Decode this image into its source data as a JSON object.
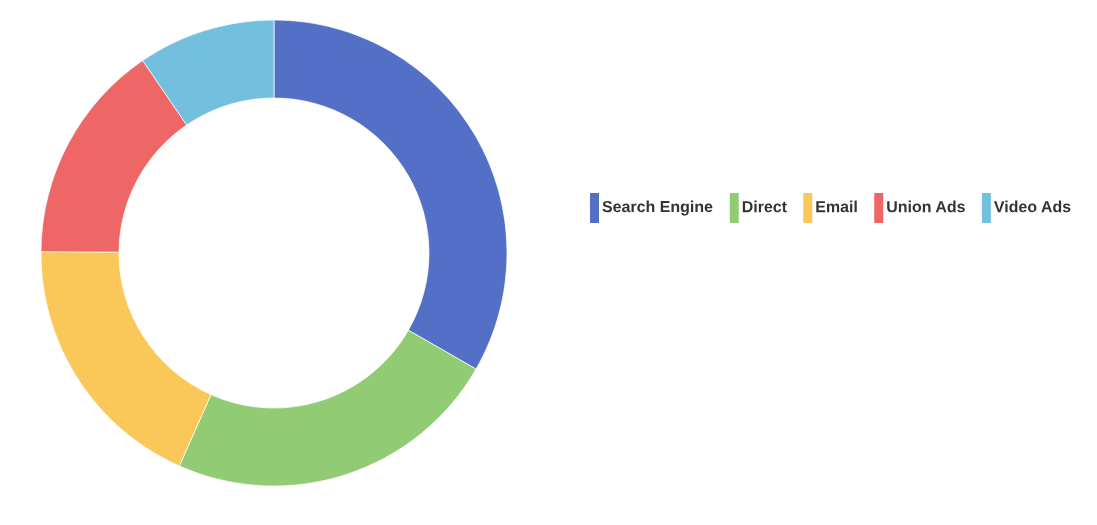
{
  "chart_data": {
    "type": "donut",
    "categories": [
      "Search Engine",
      "Direct",
      "Email",
      "Union Ads",
      "Video Ads"
    ],
    "values": [
      33.3,
      23.36,
      18.43,
      15.38,
      9.53
    ],
    "colors": [
      "#5470c6",
      "#91cc75",
      "#fac858",
      "#ee6666",
      "#73c0de"
    ],
    "legend": "right"
  }
}
